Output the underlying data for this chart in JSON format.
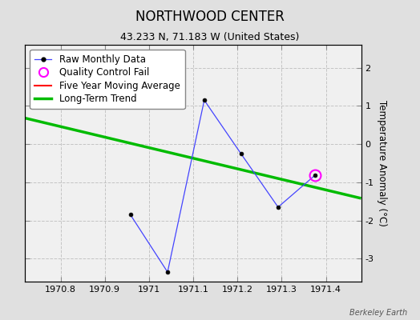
{
  "title": "NORTHWOOD CENTER",
  "subtitle": "43.233 N, 71.183 W (United States)",
  "watermark": "Berkeley Earth",
  "raw_x": [
    1970.958,
    1971.042,
    1971.125,
    1971.208,
    1971.292,
    1971.375
  ],
  "raw_y": [
    -1.85,
    -3.35,
    1.15,
    -0.25,
    -1.65,
    -0.82
  ],
  "qc_fail_x": [
    1971.375
  ],
  "qc_fail_y": [
    -0.82
  ],
  "trend_x": [
    1970.72,
    1971.48
  ],
  "trend_y": [
    0.68,
    -1.42
  ],
  "xlim": [
    1970.72,
    1971.48
  ],
  "ylim": [
    -3.6,
    2.6
  ],
  "yticks": [
    -3,
    -2,
    -1,
    0,
    1,
    2
  ],
  "xticks": [
    1970.8,
    1970.9,
    1971.0,
    1971.1,
    1971.2,
    1971.3,
    1971.4
  ],
  "xtick_labels": [
    "1970.8",
    "1970.9",
    "1971",
    "1971.1",
    "1971.2",
    "1971.3",
    "1971.4"
  ],
  "raw_line_color": "#4444ff",
  "raw_marker_color": "black",
  "trend_color": "#00bb00",
  "qc_fail_color": "magenta",
  "moving_avg_color": "red",
  "bg_color": "#e0e0e0",
  "plot_bg_color": "#f0f0f0",
  "grid_color": "#c0c0c0",
  "ylabel": "Temperature Anomaly (°C)",
  "title_fontsize": 12,
  "subtitle_fontsize": 9,
  "label_fontsize": 8.5,
  "tick_fontsize": 8,
  "watermark_fontsize": 7
}
